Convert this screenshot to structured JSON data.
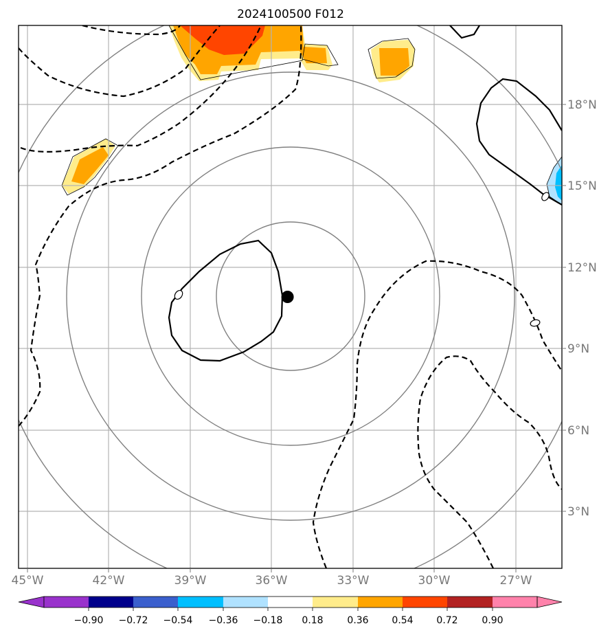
{
  "title": "2024100500 F012",
  "map": {
    "lon_range": [
      -45.3,
      -25.0
    ],
    "lat_range": [
      0.9,
      20.9
    ],
    "lon_ticks": [
      "45°W",
      "42°W",
      "39°W",
      "36°W",
      "33°W",
      "30°W",
      "27°W"
    ],
    "lat_ticks": [
      "3°N",
      "6°N",
      "9°N",
      "12°N",
      "15°N",
      "18°N"
    ],
    "center_marker": {
      "lon": -35.25,
      "lat": 10.9
    },
    "range_rings": 4,
    "gridlines": true,
    "colors": {
      "gridline": "#b3b3b3",
      "rings": "#808080",
      "contour": "#000000",
      "tick_label": "#777777"
    }
  },
  "colorbar": {
    "levels": [
      "-0.90",
      "-0.72",
      "-0.54",
      "-0.36",
      "-0.18",
      "0.18",
      "0.36",
      "0.54",
      "0.72",
      "0.90"
    ],
    "colors": [
      "#9932cc",
      "#00008b",
      "#3a5fcd",
      "#00bfff",
      "#b0e2ff",
      "#ffffff",
      "#ffec8b",
      "#ffa500",
      "#ff4500",
      "#b22222",
      "#ff82ab"
    ],
    "extend": "both"
  }
}
